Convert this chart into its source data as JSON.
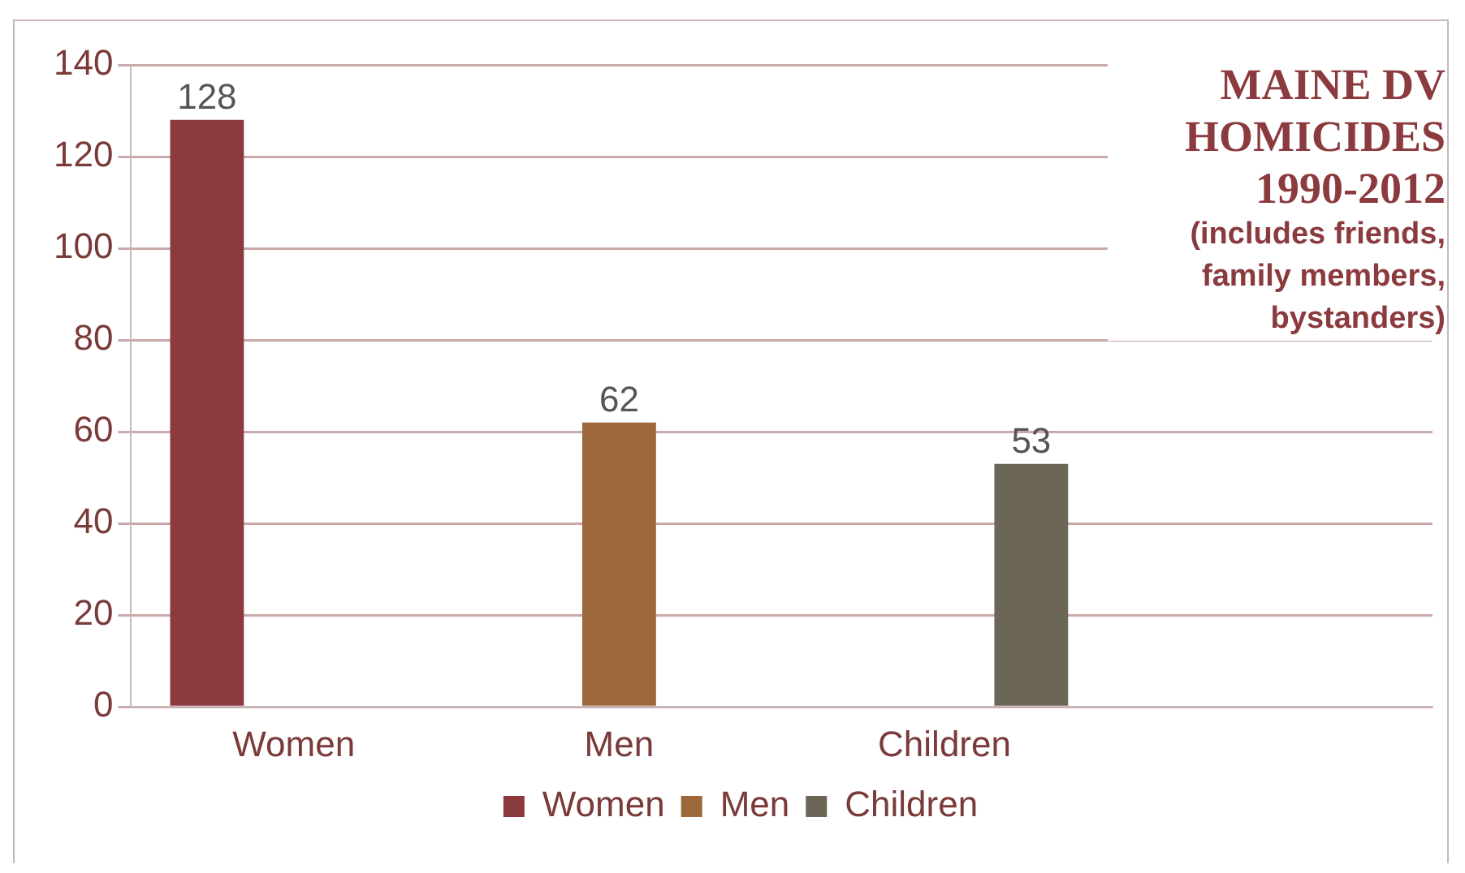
{
  "chart_data": {
    "type": "bar",
    "title": "MAINE DV HOMICIDES 1990-2012",
    "subtitle": "(includes friends, family members, bystanders)",
    "categories": [
      "Women",
      "Men",
      "Children",
      null
    ],
    "series": [
      {
        "name": "Women",
        "color": "#8b3a3e",
        "values": [
          128,
          null,
          null,
          null
        ]
      },
      {
        "name": "Men",
        "color": "#9c683c",
        "values": [
          null,
          62,
          null,
          null
        ]
      },
      {
        "name": "Children",
        "color": "#6b6656",
        "values": [
          null,
          null,
          53,
          null
        ]
      }
    ],
    "ylim": [
      0,
      140
    ],
    "yticks": [
      0,
      20,
      40,
      60,
      80,
      100,
      120,
      140
    ],
    "grid": "y",
    "legend": "bottom",
    "data_labels": true
  }
}
